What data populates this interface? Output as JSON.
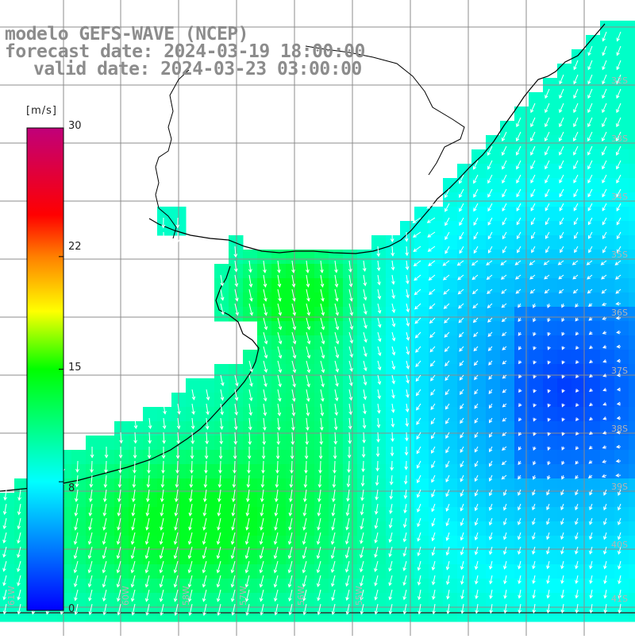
{
  "header": {
    "model_line": "modelo GEFS-WAVE (NCEP)",
    "forecast_line": "forecast date: 2024-03-19 18:00:00",
    "valid_line": "valid date: 2024-03-23 03:00:00"
  },
  "colorbar": {
    "unit": "[m/s]",
    "tick_labels": [
      "30",
      "22",
      "15",
      "8",
      "0"
    ],
    "tick_values": [
      30,
      22,
      15,
      8,
      0
    ],
    "range": [
      0,
      30
    ]
  },
  "map": {
    "lat_labels": [
      "32S",
      "33S",
      "34S",
      "35S",
      "36S",
      "37S",
      "38S",
      "39S",
      "40S",
      "41S"
    ],
    "lon_labels": [
      "61W",
      "60W",
      "58W",
      "57W",
      "56W",
      "55W"
    ],
    "colors": {
      "land": "#ffffff",
      "grid": "#8c8c8c",
      "coast": "#000000",
      "arrow": "#ffffff",
      "label": "#b4b4b4"
    }
  }
}
